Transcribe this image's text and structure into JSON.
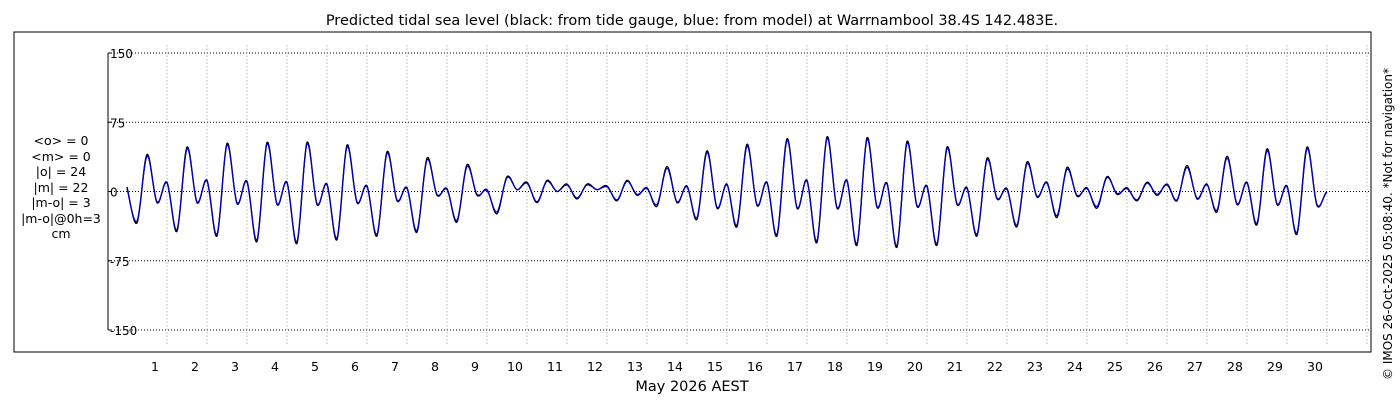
{
  "chart_data": {
    "type": "line",
    "title": "Predicted tidal sea level (black: from tide gauge, blue: from model) at Warrnambool 38.4S 142.483E.",
    "xlabel": "May 2026 AEST",
    "ylabel": "",
    "ylim": [
      -150,
      150
    ],
    "yticks": [
      150,
      75,
      0,
      -75,
      -150
    ],
    "ytick_labels": [
      "150",
      "75",
      "0",
      "-75",
      "-150"
    ],
    "xlim_days": [
      0,
      31
    ],
    "day_labels": [
      "1",
      "2",
      "3",
      "4",
      "5",
      "6",
      "7",
      "8",
      "9",
      "10",
      "11",
      "12",
      "13",
      "14",
      "15",
      "16",
      "17",
      "18",
      "19",
      "20",
      "21",
      "22",
      "23",
      "24",
      "25",
      "26",
      "27",
      "28",
      "29",
      "30"
    ],
    "grid": true,
    "units": "cm",
    "series": [
      {
        "name": "tide gauge",
        "color": "#000000",
        "day": [
          0.0,
          0.25,
          0.5,
          0.75,
          1.0,
          1.25,
          1.5,
          1.75,
          2.0,
          2.25,
          2.5,
          2.75,
          3.0,
          3.25,
          3.5,
          3.75,
          4.0,
          4.25,
          4.5,
          4.75,
          5.0,
          5.25,
          5.5,
          5.75,
          6.0,
          6.25,
          6.5,
          6.75,
          7.0,
          7.25,
          7.5,
          7.75,
          8.0,
          8.25,
          8.5,
          8.75,
          9.0,
          9.25,
          9.5,
          9.75,
          10.0,
          10.25,
          10.5,
          10.75,
          11.0,
          11.25,
          11.5,
          11.75,
          12.0,
          12.25,
          12.5,
          12.75,
          13.0,
          13.25,
          13.5,
          13.75,
          14.0,
          14.25,
          14.5,
          14.75,
          15.0,
          15.25,
          15.5,
          15.75,
          16.0,
          16.25,
          16.5,
          16.75,
          17.0,
          17.25,
          17.5,
          17.75,
          18.0,
          18.25,
          18.5,
          18.75,
          19.0,
          19.25,
          19.5,
          19.75,
          20.0,
          20.25,
          20.5,
          20.75,
          21.0,
          21.25,
          21.5,
          21.75,
          22.0,
          22.25,
          22.5,
          22.75,
          23.0,
          23.25,
          23.5,
          23.75,
          24.0,
          24.25,
          24.5,
          24.75,
          25.0,
          25.25,
          25.5,
          25.75,
          26.0,
          26.25,
          26.5,
          26.75,
          27.0,
          27.25,
          27.5,
          27.75,
          28.0,
          28.25,
          28.5,
          28.75,
          29.0,
          29.25,
          29.5,
          29.75,
          30.0,
          30.25,
          30.5,
          30.75,
          31.0
        ],
        "values": [
          5,
          -34,
          40,
          -12,
          10,
          -43,
          48,
          -12,
          12,
          -48,
          52,
          -13,
          11,
          -54,
          53,
          -14,
          10,
          -56,
          53,
          -14,
          8,
          -52,
          50,
          -12,
          6,
          -48,
          43,
          -10,
          4,
          -44,
          36,
          -4,
          3,
          -33,
          29,
          -4,
          2,
          -24,
          16,
          2,
          10,
          -12,
          12,
          0,
          8,
          -8,
          8,
          2,
          6,
          -10,
          12,
          -4,
          4,
          -16,
          27,
          -12,
          6,
          -30,
          44,
          -18,
          8,
          -38,
          51,
          -15,
          10,
          -48,
          57,
          -18,
          12,
          -55,
          59,
          -18,
          12,
          -58,
          58,
          -17,
          9,
          -60,
          54,
          -16,
          6,
          -58,
          48,
          -14,
          4,
          -48,
          36,
          -8,
          3,
          -38,
          32,
          -6,
          10,
          -28,
          26,
          -5,
          4,
          -18,
          16,
          -3,
          4,
          -10,
          10,
          -4,
          8,
          -10,
          28,
          -8,
          8,
          -22,
          38,
          -14,
          10,
          -36,
          46,
          -14,
          6,
          -46,
          48,
          -15,
          0,
          -6
        ]
      },
      {
        "name": "model",
        "color": "#0000cc",
        "day": [
          0.0,
          0.25,
          0.5,
          0.75,
          1.0,
          1.25,
          1.5,
          1.75,
          2.0,
          2.25,
          2.5,
          2.75,
          3.0,
          3.25,
          3.5,
          3.75,
          4.0,
          4.25,
          4.5,
          4.75,
          5.0,
          5.25,
          5.5,
          5.75,
          6.0,
          6.25,
          6.5,
          6.75,
          7.0,
          7.25,
          7.5,
          7.75,
          8.0,
          8.25,
          8.5,
          8.75,
          9.0,
          9.25,
          9.5,
          9.75,
          10.0,
          10.25,
          10.5,
          10.75,
          11.0,
          11.25,
          11.5,
          11.75,
          12.0,
          12.25,
          12.5,
          12.75,
          13.0,
          13.25,
          13.5,
          13.75,
          14.0,
          14.25,
          14.5,
          14.75,
          15.0,
          15.25,
          15.5,
          15.75,
          16.0,
          16.25,
          16.5,
          16.75,
          17.0,
          17.25,
          17.5,
          17.75,
          18.0,
          18.25,
          18.5,
          18.75,
          19.0,
          19.25,
          19.5,
          19.75,
          20.0,
          20.25,
          20.5,
          20.75,
          21.0,
          21.25,
          21.5,
          21.75,
          22.0,
          22.25,
          22.5,
          22.75,
          23.0,
          23.25,
          23.5,
          23.75,
          24.0,
          24.25,
          24.5,
          24.75,
          25.0,
          25.25,
          25.5,
          25.75,
          26.0,
          26.25,
          26.5,
          26.75,
          27.0,
          27.25,
          27.5,
          27.75,
          28.0,
          28.25,
          28.5,
          28.75,
          29.0,
          29.25,
          29.5,
          29.75,
          30.0,
          30.25,
          30.5,
          30.75,
          31.0
        ],
        "values": [
          3,
          -32,
          38,
          -11,
          9,
          -41,
          46,
          -11,
          11,
          -46,
          50,
          -12,
          10,
          -52,
          51,
          -13,
          9,
          -54,
          51,
          -13,
          7,
          -50,
          48,
          -11,
          5,
          -46,
          41,
          -9,
          3,
          -42,
          34,
          -3,
          2,
          -31,
          27,
          -3,
          1,
          -22,
          15,
          2,
          9,
          -11,
          11,
          0,
          7,
          -7,
          7,
          2,
          5,
          -9,
          11,
          -3,
          3,
          -14,
          25,
          -11,
          5,
          -28,
          42,
          -17,
          7,
          -36,
          49,
          -14,
          9,
          -46,
          55,
          -17,
          11,
          -53,
          57,
          -17,
          11,
          -56,
          56,
          -16,
          8,
          -58,
          52,
          -15,
          5,
          -56,
          46,
          -13,
          3,
          -46,
          34,
          -7,
          2,
          -36,
          30,
          -5,
          9,
          -26,
          24,
          -4,
          3,
          -16,
          15,
          -2,
          3,
          -9,
          9,
          -3,
          7,
          -9,
          26,
          -7,
          7,
          -20,
          36,
          -13,
          9,
          -34,
          44,
          -13,
          5,
          -44,
          46,
          -14,
          -1,
          -7
        ]
      }
    ]
  },
  "stats": {
    "lines": [
      "<o> = 0",
      "<m> = 0",
      "|o| = 24",
      "|m| = 22",
      "|m-o| = 3",
      "|m-o|@0h=3",
      "cm"
    ]
  },
  "side_note": "© IMOS 26-Oct-2025 05:08:40. *Not for navigation*"
}
